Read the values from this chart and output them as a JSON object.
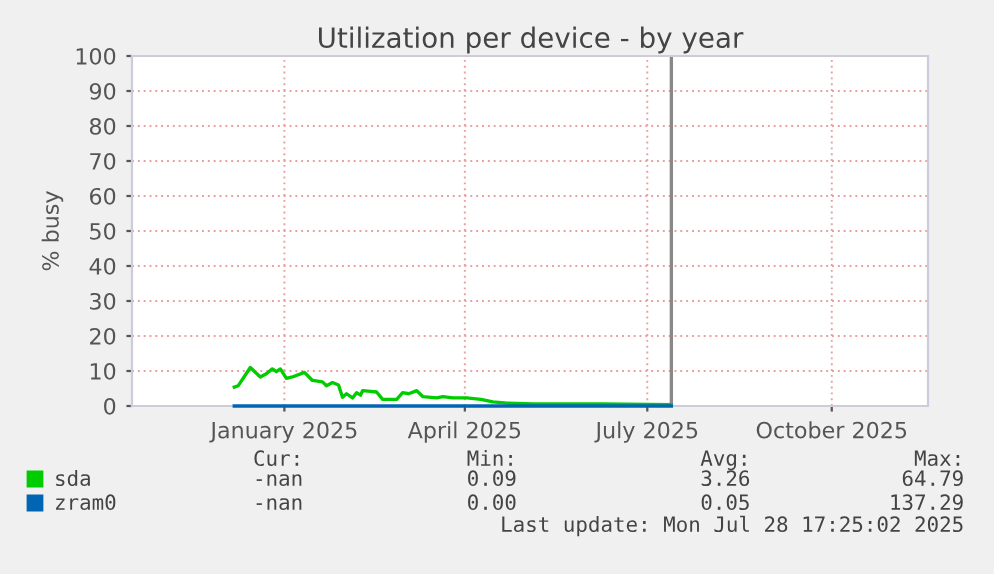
{
  "chart_data": {
    "type": "line",
    "title": "Utilization per device - by year",
    "ylabel": "% busy",
    "xlim": [
      "2024-11-01",
      "2025-12-03"
    ],
    "xticks": [
      {
        "value": "2025-01-16",
        "label": "January 2025"
      },
      {
        "value": "2025-04-16",
        "label": "April 2025"
      },
      {
        "value": "2025-07-16",
        "label": "July 2025"
      },
      {
        "value": "2025-10-16",
        "label": "October 2025"
      }
    ],
    "ylim": [
      0,
      100
    ],
    "yticks": [
      0,
      10,
      20,
      30,
      40,
      50,
      60,
      70,
      80,
      90,
      100
    ],
    "grid": true,
    "legend": "bottom",
    "ref_lines": [
      {
        "axis": "x",
        "value": "2025-07-28",
        "color": "#888888"
      }
    ],
    "series": [
      {
        "name": "sda",
        "color": "#00cc00",
        "x": [
          "2024-12-22",
          "2024-12-24",
          "2024-12-30",
          "2025-01-04",
          "2025-01-07",
          "2025-01-10",
          "2025-01-12",
          "2025-01-14",
          "2025-01-17",
          "2025-01-20",
          "2025-01-26",
          "2025-01-30",
          "2025-02-04",
          "2025-02-06",
          "2025-02-09",
          "2025-02-12",
          "2025-02-14",
          "2025-02-16",
          "2025-02-19",
          "2025-02-21",
          "2025-02-23",
          "2025-02-24",
          "2025-02-28",
          "2025-03-03",
          "2025-03-06",
          "2025-03-13",
          "2025-03-16",
          "2025-03-19",
          "2025-03-23",
          "2025-03-26",
          "2025-04-02",
          "2025-04-05",
          "2025-04-10",
          "2025-04-17",
          "2025-04-24",
          "2025-04-30",
          "2025-05-07",
          "2025-05-20",
          "2025-06-23",
          "2025-07-28"
        ],
        "values": [
          5.4,
          5.8,
          11.0,
          8.3,
          9.2,
          10.6,
          9.8,
          10.6,
          7.9,
          8.3,
          9.6,
          7.3,
          6.9,
          5.8,
          6.7,
          6.0,
          2.5,
          3.5,
          2.3,
          3.8,
          3.1,
          4.4,
          4.2,
          4.0,
          1.9,
          1.9,
          3.8,
          3.5,
          4.4,
          2.7,
          2.3,
          2.7,
          2.3,
          2.3,
          1.9,
          1.2,
          0.8,
          0.6,
          0.6,
          0.4
        ]
      },
      {
        "name": "zram0",
        "color": "#0066b3",
        "x": [
          "2024-12-22",
          "2025-07-28"
        ],
        "values": [
          0,
          0
        ]
      }
    ],
    "annotations": [
      "Cur:",
      "Min:",
      "Avg:",
      "Max:",
      "-nan",
      "0.09",
      "3.26",
      "64.79",
      "-nan",
      "0.00",
      "0.05",
      "137.29",
      "Last update: Mon Jul 28 17:25:02 2025"
    ]
  }
}
